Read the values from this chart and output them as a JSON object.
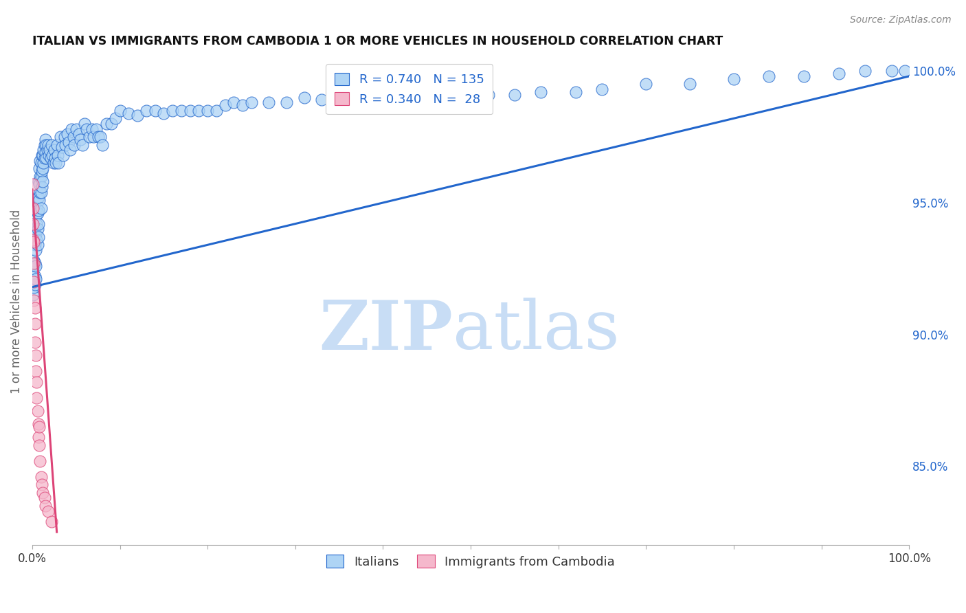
{
  "title": "ITALIAN VS IMMIGRANTS FROM CAMBODIA 1 OR MORE VEHICLES IN HOUSEHOLD CORRELATION CHART",
  "source": "Source: ZipAtlas.com",
  "ylabel": "1 or more Vehicles in Household",
  "xlim": [
    0.0,
    1.0
  ],
  "ylim": [
    0.82,
    1.005
  ],
  "x_tick_positions": [
    0.0,
    0.1,
    0.2,
    0.3,
    0.4,
    0.5,
    0.6,
    0.7,
    0.8,
    0.9,
    1.0
  ],
  "x_tick_labels": [
    "0.0%",
    "",
    "",
    "",
    "",
    "",
    "",
    "",
    "",
    "",
    "100.0%"
  ],
  "y_ticks_right": [
    0.85,
    0.9,
    0.95,
    1.0
  ],
  "y_tick_labels_right": [
    "85.0%",
    "90.0%",
    "95.0%",
    "100.0%"
  ],
  "legend_blue_R": "0.740",
  "legend_blue_N": "135",
  "legend_pink_R": "0.340",
  "legend_pink_N": " 28",
  "legend_label_blue": "Italians",
  "legend_label_pink": "Immigrants from Cambodia",
  "blue_line_x": [
    0.0,
    1.0
  ],
  "blue_line_y": [
    0.918,
    0.998
  ],
  "pink_line_x": [
    0.0,
    0.028
  ],
  "pink_line_y": [
    0.955,
    0.825
  ],
  "scatter_blue_x": [
    0.001,
    0.001,
    0.001,
    0.002,
    0.002,
    0.002,
    0.003,
    0.003,
    0.003,
    0.003,
    0.003,
    0.004,
    0.004,
    0.004,
    0.004,
    0.004,
    0.005,
    0.005,
    0.005,
    0.006,
    0.006,
    0.006,
    0.006,
    0.007,
    0.007,
    0.007,
    0.007,
    0.007,
    0.008,
    0.008,
    0.008,
    0.009,
    0.009,
    0.009,
    0.01,
    0.01,
    0.01,
    0.01,
    0.011,
    0.011,
    0.011,
    0.012,
    0.012,
    0.012,
    0.013,
    0.013,
    0.014,
    0.014,
    0.015,
    0.015,
    0.016,
    0.016,
    0.017,
    0.018,
    0.019,
    0.02,
    0.021,
    0.022,
    0.023,
    0.024,
    0.025,
    0.026,
    0.027,
    0.028,
    0.029,
    0.03,
    0.032,
    0.034,
    0.035,
    0.037,
    0.038,
    0.04,
    0.042,
    0.043,
    0.045,
    0.047,
    0.048,
    0.05,
    0.053,
    0.055,
    0.057,
    0.06,
    0.062,
    0.065,
    0.068,
    0.07,
    0.073,
    0.075,
    0.078,
    0.08,
    0.085,
    0.09,
    0.095,
    0.1,
    0.11,
    0.12,
    0.13,
    0.14,
    0.15,
    0.16,
    0.17,
    0.18,
    0.19,
    0.2,
    0.21,
    0.22,
    0.23,
    0.24,
    0.25,
    0.27,
    0.29,
    0.31,
    0.33,
    0.35,
    0.38,
    0.4,
    0.43,
    0.46,
    0.49,
    0.52,
    0.55,
    0.58,
    0.62,
    0.65,
    0.7,
    0.75,
    0.8,
    0.84,
    0.88,
    0.92,
    0.95,
    0.98,
    0.995
  ],
  "scatter_blue_y": [
    0.92,
    0.915,
    0.925,
    0.935,
    0.928,
    0.918,
    0.94,
    0.934,
    0.927,
    0.922,
    0.919,
    0.945,
    0.938,
    0.932,
    0.926,
    0.921,
    0.948,
    0.942,
    0.936,
    0.952,
    0.946,
    0.94,
    0.934,
    0.958,
    0.952,
    0.947,
    0.942,
    0.937,
    0.963,
    0.957,
    0.951,
    0.966,
    0.96,
    0.954,
    0.965,
    0.96,
    0.954,
    0.948,
    0.968,
    0.962,
    0.956,
    0.968,
    0.963,
    0.958,
    0.97,
    0.965,
    0.972,
    0.967,
    0.974,
    0.969,
    0.972,
    0.967,
    0.97,
    0.972,
    0.968,
    0.97,
    0.967,
    0.972,
    0.968,
    0.965,
    0.97,
    0.967,
    0.965,
    0.972,
    0.968,
    0.965,
    0.975,
    0.971,
    0.968,
    0.975,
    0.972,
    0.976,
    0.973,
    0.97,
    0.978,
    0.975,
    0.972,
    0.978,
    0.976,
    0.974,
    0.972,
    0.98,
    0.978,
    0.975,
    0.978,
    0.975,
    0.978,
    0.975,
    0.975,
    0.972,
    0.98,
    0.98,
    0.982,
    0.985,
    0.984,
    0.983,
    0.985,
    0.985,
    0.984,
    0.985,
    0.985,
    0.985,
    0.985,
    0.985,
    0.985,
    0.987,
    0.988,
    0.987,
    0.988,
    0.988,
    0.988,
    0.99,
    0.989,
    0.988,
    0.987,
    0.988,
    0.987,
    0.99,
    0.99,
    0.991,
    0.991,
    0.992,
    0.992,
    0.993,
    0.995,
    0.995,
    0.997,
    0.998,
    0.998,
    0.999,
    1.0,
    1.0,
    1.0
  ],
  "scatter_pink_x": [
    0.001,
    0.001,
    0.001,
    0.001,
    0.002,
    0.002,
    0.002,
    0.002,
    0.003,
    0.003,
    0.003,
    0.004,
    0.004,
    0.005,
    0.005,
    0.006,
    0.007,
    0.007,
    0.008,
    0.008,
    0.009,
    0.01,
    0.011,
    0.012,
    0.014,
    0.015,
    0.018,
    0.022
  ],
  "scatter_pink_y": [
    0.957,
    0.948,
    0.942,
    0.936,
    0.935,
    0.927,
    0.92,
    0.913,
    0.91,
    0.904,
    0.897,
    0.892,
    0.886,
    0.882,
    0.876,
    0.871,
    0.866,
    0.861,
    0.865,
    0.858,
    0.852,
    0.846,
    0.843,
    0.84,
    0.838,
    0.835,
    0.833,
    0.829
  ],
  "blue_color": "#aed4f5",
  "pink_color": "#f5b8cc",
  "blue_line_color": "#2266cc",
  "pink_line_color": "#dd4477",
  "grid_color": "#cccccc",
  "watermark_zip_color": "#c8ddf5",
  "watermark_atlas_color": "#c8ddf5",
  "background_color": "#ffffff"
}
